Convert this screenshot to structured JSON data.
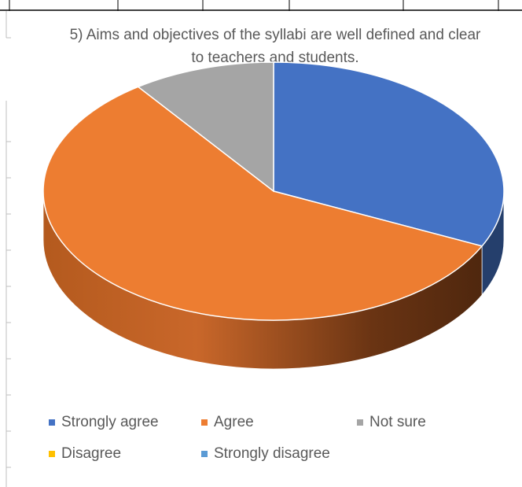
{
  "chart_data": {
    "type": "pie",
    "title": "5) Aims and objectives of the syllabi are well defined and clear to teachers and students.",
    "categories": [
      "Strongly agree",
      "Agree",
      "Not sure",
      "Disagree",
      "Strongly disagree"
    ],
    "values": [
      32,
      58,
      10,
      0,
      0
    ],
    "colors": [
      "#4472c4",
      "#ed7d31",
      "#a5a5a5",
      "#ffc000",
      "#5b9bd5"
    ],
    "style": "3d-pie",
    "legend_position": "bottom"
  }
}
